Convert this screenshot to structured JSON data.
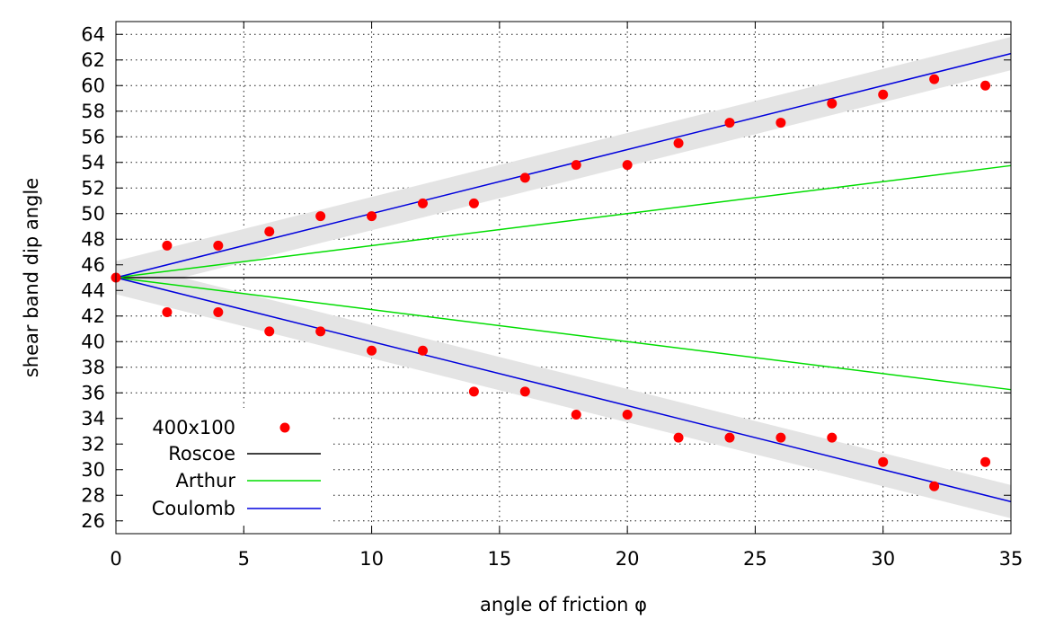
{
  "chart_data": {
    "type": "scatter",
    "title": "",
    "xlabel": "angle of friction φ",
    "ylabel": "shear band dip angle",
    "xlim": [
      0,
      35
    ],
    "ylim": [
      25,
      65
    ],
    "x_ticks": [
      0,
      5,
      10,
      15,
      20,
      25,
      30,
      35
    ],
    "y_ticks": [
      26,
      28,
      30,
      32,
      34,
      36,
      38,
      40,
      42,
      44,
      46,
      48,
      50,
      52,
      54,
      56,
      58,
      60,
      62,
      64
    ],
    "grid": true,
    "legend_position": "bottom-left",
    "colors": {
      "points": "#ff0000",
      "roscoe": "#000000",
      "arthur": "#00dd00",
      "coulomb": "#0000dd",
      "band": "#e4e4e4"
    },
    "series": [
      {
        "name": "400x100",
        "kind": "points",
        "points": [
          [
            0,
            45
          ],
          [
            2,
            47.5
          ],
          [
            4,
            47.5
          ],
          [
            6,
            48.6
          ],
          [
            8,
            49.8
          ],
          [
            10,
            49.8
          ],
          [
            12,
            50.8
          ],
          [
            14,
            50.8
          ],
          [
            16,
            52.8
          ],
          [
            18,
            53.8
          ],
          [
            20,
            53.8
          ],
          [
            22,
            55.5
          ],
          [
            24,
            57.1
          ],
          [
            26,
            57.1
          ],
          [
            28,
            58.6
          ],
          [
            30,
            59.3
          ],
          [
            32,
            60.5
          ],
          [
            34,
            60.0
          ],
          [
            2,
            42.3
          ],
          [
            4,
            42.3
          ],
          [
            6,
            40.8
          ],
          [
            8,
            40.8
          ],
          [
            10,
            39.3
          ],
          [
            12,
            39.3
          ],
          [
            14,
            36.1
          ],
          [
            16,
            36.1
          ],
          [
            18,
            34.3
          ],
          [
            20,
            34.3
          ],
          [
            22,
            32.5
          ],
          [
            24,
            32.5
          ],
          [
            26,
            32.5
          ],
          [
            28,
            32.5
          ],
          [
            30,
            30.6
          ],
          [
            32,
            28.7
          ],
          [
            34,
            30.6
          ]
        ]
      },
      {
        "name": "Roscoe",
        "kind": "line",
        "lines": [
          [
            [
              0,
              45
            ],
            [
              35,
              45
            ]
          ]
        ]
      },
      {
        "name": "Arthur",
        "kind": "line",
        "lines": [
          [
            [
              0,
              45
            ],
            [
              35,
              53.75
            ]
          ],
          [
            [
              0,
              45
            ],
            [
              35,
              36.25
            ]
          ]
        ]
      },
      {
        "name": "Coulomb",
        "kind": "line",
        "lines": [
          [
            [
              0,
              45
            ],
            [
              35,
              62.5
            ]
          ],
          [
            [
              0,
              45
            ],
            [
              35,
              27.5
            ]
          ]
        ]
      }
    ],
    "bands": [
      {
        "from": [
          0,
          45
        ],
        "to": [
          35,
          62.5
        ],
        "half_width": 1.3
      },
      {
        "from": [
          0,
          45
        ],
        "to": [
          35,
          27.5
        ],
        "half_width": 1.3
      }
    ]
  }
}
